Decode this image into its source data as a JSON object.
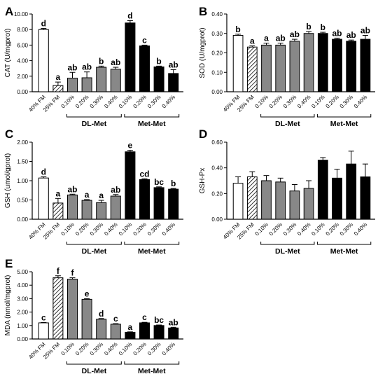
{
  "chart_data": [
    {
      "type": "bar",
      "panel": "A",
      "ylabel": "CAT (U/mgprot)",
      "ylim": [
        0,
        10
      ],
      "yticks": [
        "0.00",
        "2.00",
        "4.00",
        "6.00",
        "8.00",
        "10.00"
      ],
      "categories": [
        "40% FM",
        "25% FM",
        "0.10%",
        "0.20%",
        "0.30%",
        "0.40%",
        "0.10%",
        "0.20%",
        "0.30%",
        "0.40%"
      ],
      "styles": [
        "white",
        "hatch",
        "gray",
        "gray",
        "gray",
        "gray",
        "black",
        "black",
        "black",
        "black"
      ],
      "values": [
        8.0,
        0.8,
        1.75,
        1.8,
        3.15,
        2.9,
        8.85,
        5.9,
        3.2,
        2.35
      ],
      "errors": [
        0.15,
        0.45,
        0.75,
        0.75,
        0.15,
        0.25,
        0.3,
        0.1,
        0.1,
        0.5
      ],
      "letters": [
        "d",
        "a",
        "ab",
        "ab",
        "b",
        "ab",
        "d",
        "c",
        "b",
        "ab"
      ],
      "groups": [
        {
          "label": "DL-Met",
          "from": 2,
          "to": 5
        },
        {
          "label": "Met-Met",
          "from": 6,
          "to": 9
        }
      ]
    },
    {
      "type": "bar",
      "panel": "B",
      "ylabel": "SOD (U/mgprot)",
      "ylim": [
        0,
        0.4
      ],
      "yticks": [
        "0.00",
        "0.10",
        "0.20",
        "0.30",
        "0.40"
      ],
      "categories": [
        "40% FM",
        "25% FM",
        "0.10%",
        "0.20%",
        "0.30%",
        "0.40%",
        "0.10%",
        "0.20%",
        "0.30%",
        "0.40%"
      ],
      "styles": [
        "white",
        "hatch",
        "gray",
        "gray",
        "gray",
        "gray",
        "black",
        "black",
        "black",
        "black"
      ],
      "values": [
        0.29,
        0.23,
        0.24,
        0.24,
        0.26,
        0.3,
        0.3,
        0.27,
        0.26,
        0.27
      ],
      "errors": [
        0.006,
        0.006,
        0.01,
        0.01,
        0.01,
        0.01,
        0.006,
        0.006,
        0.006,
        0.02
      ],
      "letters": [
        "b",
        "a",
        "a",
        "ab",
        "ab",
        "b",
        "b",
        "ab",
        "ab",
        "ab"
      ],
      "groups": [
        {
          "label": "DL-Met",
          "from": 2,
          "to": 5
        },
        {
          "label": "Met-Met",
          "from": 6,
          "to": 9
        }
      ]
    },
    {
      "type": "bar",
      "panel": "C",
      "ylabel": "GSH (umol/gprot)",
      "ylim": [
        0,
        2.0
      ],
      "yticks": [
        "0.00",
        "0.50",
        "1.00",
        "1.50",
        "2.00"
      ],
      "categories": [
        "40% FM",
        "25% FM",
        "0.10%",
        "0.20%",
        "0.30%",
        "0.40%",
        "0.10%",
        "0.20%",
        "0.30%",
        "0.40%"
      ],
      "styles": [
        "white",
        "hatch",
        "gray",
        "gray",
        "gray",
        "gray",
        "black",
        "black",
        "black",
        "black"
      ],
      "values": [
        1.07,
        0.42,
        0.63,
        0.49,
        0.43,
        0.6,
        1.75,
        1.03,
        0.82,
        0.78
      ],
      "errors": [
        0.03,
        0.12,
        0.02,
        0.02,
        0.06,
        0.04,
        0.04,
        0.02,
        0.02,
        0.02
      ],
      "letters": [
        "d",
        "a",
        "ab",
        "a",
        "a",
        "ab",
        "e",
        "cd",
        "bc",
        "b"
      ],
      "groups": [
        {
          "label": "DL-Met",
          "from": 2,
          "to": 5
        },
        {
          "label": "Met-Met",
          "from": 6,
          "to": 9
        }
      ]
    },
    {
      "type": "bar",
      "panel": "D",
      "ylabel": "GSH-Px",
      "ylim": [
        0,
        0.6
      ],
      "yticks": [
        "0.00",
        "0.20",
        "0.40",
        "0.60"
      ],
      "categories": [
        "40% FM",
        "25% FM",
        "0.10%",
        "0.20%",
        "0.30%",
        "0.40%",
        "0.10%",
        "0.20%",
        "0.30%",
        "0.40%"
      ],
      "styles": [
        "white",
        "hatch",
        "gray",
        "gray",
        "gray",
        "gray",
        "black",
        "black",
        "black",
        "black"
      ],
      "values": [
        0.28,
        0.33,
        0.3,
        0.29,
        0.22,
        0.24,
        0.46,
        0.32,
        0.43,
        0.33
      ],
      "errors": [
        0.05,
        0.04,
        0.04,
        0.03,
        0.05,
        0.06,
        0.02,
        0.07,
        0.1,
        0.1
      ],
      "letters": [
        "",
        "",
        "",
        "",
        "",
        "",
        "",
        "",
        "",
        ""
      ],
      "groups": [
        {
          "label": "DL-Met",
          "from": 2,
          "to": 5
        },
        {
          "label": "Met-Met",
          "from": 6,
          "to": 9
        }
      ]
    },
    {
      "type": "bar",
      "panel": "E",
      "ylabel": "MDA (nmol/mgprot)",
      "ylim": [
        0,
        5.0
      ],
      "yticks": [
        "0.00",
        "1.00",
        "2.00",
        "3.00",
        "4.00",
        "5.00"
      ],
      "categories": [
        "40% FM",
        "25% FM",
        "0.10%",
        "0.20%",
        "0.30%",
        "0.40%",
        "0.10%",
        "0.20%",
        "0.30%",
        "0.40%"
      ],
      "styles": [
        "white",
        "hatch",
        "gray",
        "gray",
        "gray",
        "gray",
        "black",
        "black",
        "black",
        "black"
      ],
      "values": [
        1.2,
        4.55,
        4.45,
        2.95,
        1.47,
        1.1,
        0.5,
        1.2,
        1.0,
        0.82
      ],
      "errors": [
        0.03,
        0.15,
        0.1,
        0.05,
        0.05,
        0.04,
        0.03,
        0.04,
        0.04,
        0.05
      ],
      "letters": [
        "c",
        "f",
        "f",
        "e",
        "d",
        "c",
        "a",
        "c",
        "bc",
        "ab"
      ],
      "groups": [
        {
          "label": "DL-Met",
          "from": 2,
          "to": 5
        },
        {
          "label": "Met-Met",
          "from": 6,
          "to": 9
        }
      ]
    }
  ],
  "colors": {
    "gray": "#888888",
    "black": "#000000",
    "white": "#ffffff",
    "axis": "#000000"
  }
}
